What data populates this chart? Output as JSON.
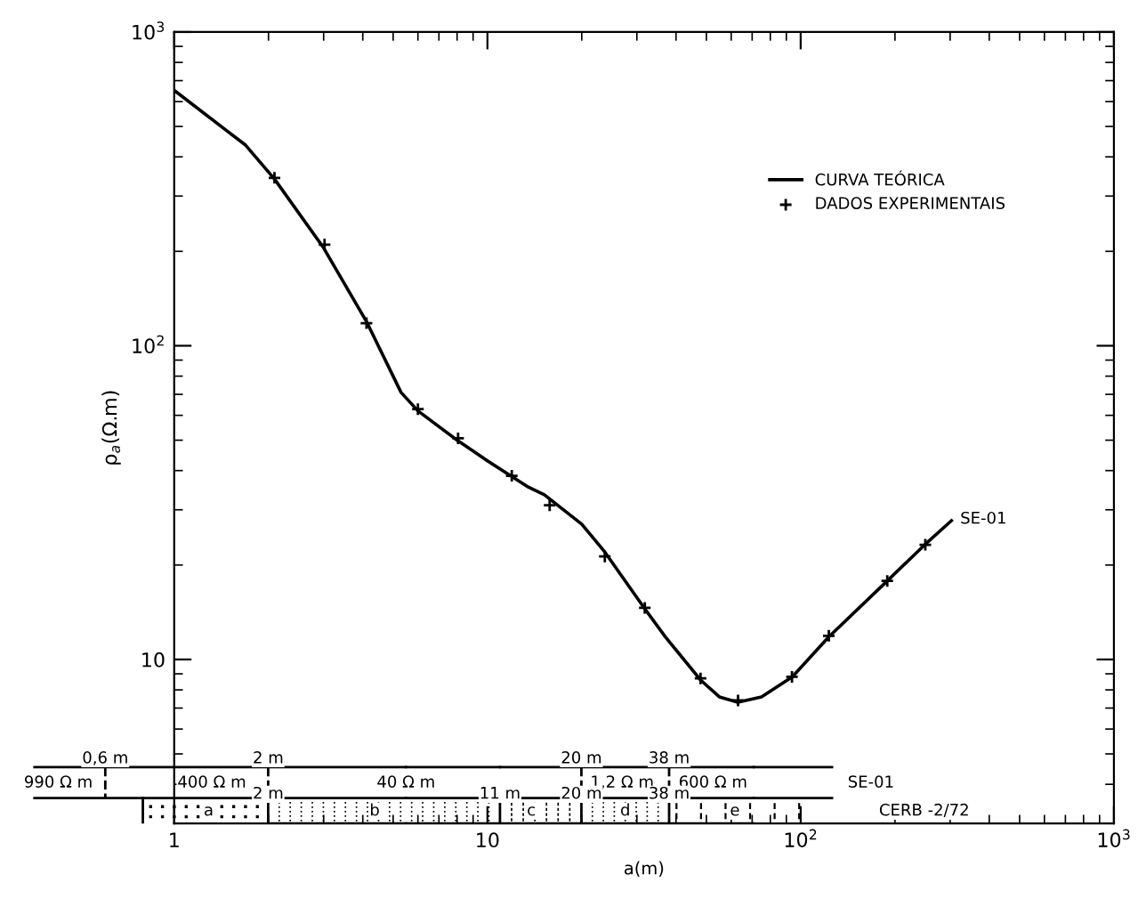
{
  "chart_data": {
    "type": "line",
    "xlabel": "a(m)",
    "ylabel": "ρ$_{a}$(Ω.m)",
    "log": "xy",
    "xlim": [
      1,
      1000
    ],
    "ylim": [
      3,
      1000
    ],
    "xticks": [
      1,
      10,
      {
        "value": 100,
        "label": "10$^{2}$"
      },
      {
        "value": 1000,
        "label": "10$^{3}$"
      }
    ],
    "yticks": [
      10,
      {
        "value": 100,
        "label": "10$^{2}$"
      },
      {
        "value": 1000,
        "label": "10$^{3}$"
      }
    ],
    "legend": "top right",
    "grid": false,
    "series": [
      {
        "name": "CURVA TEÓRICA",
        "color": "#000000",
        "line_style": "solid",
        "marker": "none",
        "x": [
          1,
          1.69,
          2.09,
          3.0,
          4.1,
          5.3,
          6.0,
          8.0,
          10,
          13.4,
          15.2,
          20,
          23.7,
          31.8,
          37,
          47.9,
          55,
          63,
          75,
          94,
          123,
          189,
          250,
          303
        ],
        "values": [
          652,
          436,
          340,
          205,
          120,
          71,
          62,
          50,
          43,
          35.6,
          33.5,
          27,
          22,
          14.5,
          11.8,
          8.6,
          7.6,
          7.3,
          7.6,
          8.8,
          11.8,
          17.8,
          23.3,
          27.7
        ]
      },
      {
        "name": "DADOS EXPERIMENTAIS",
        "type": "scatter",
        "color": "#000000",
        "marker": "cross",
        "x": [
          2.09,
          3.02,
          4.11,
          6.0,
          8.06,
          11.96,
          15.8,
          23.7,
          31.8,
          47.9,
          63.1,
          93.8,
          123,
          189,
          250
        ],
        "values": [
          343,
          210,
          118,
          62.8,
          50.7,
          38.5,
          31,
          21.3,
          14.6,
          8.7,
          7.4,
          8.8,
          11.9,
          17.8,
          23.2
        ]
      }
    ],
    "annotations": [
      "0,6 m",
      "2 m",
      "20 m",
      "38 m",
      "990 Ω m",
      "400 Ω m",
      "40 Ω m",
      "1,2 Ω m",
      "600 Ω m",
      "SE-01",
      "2 m",
      "11 m",
      "20 m",
      "38 m",
      "a",
      "b",
      "c",
      "d",
      "e",
      "CERB -2/72",
      {
        "text": "SE-01",
        "x": 323,
        "y": 28
      }
    ]
  }
}
